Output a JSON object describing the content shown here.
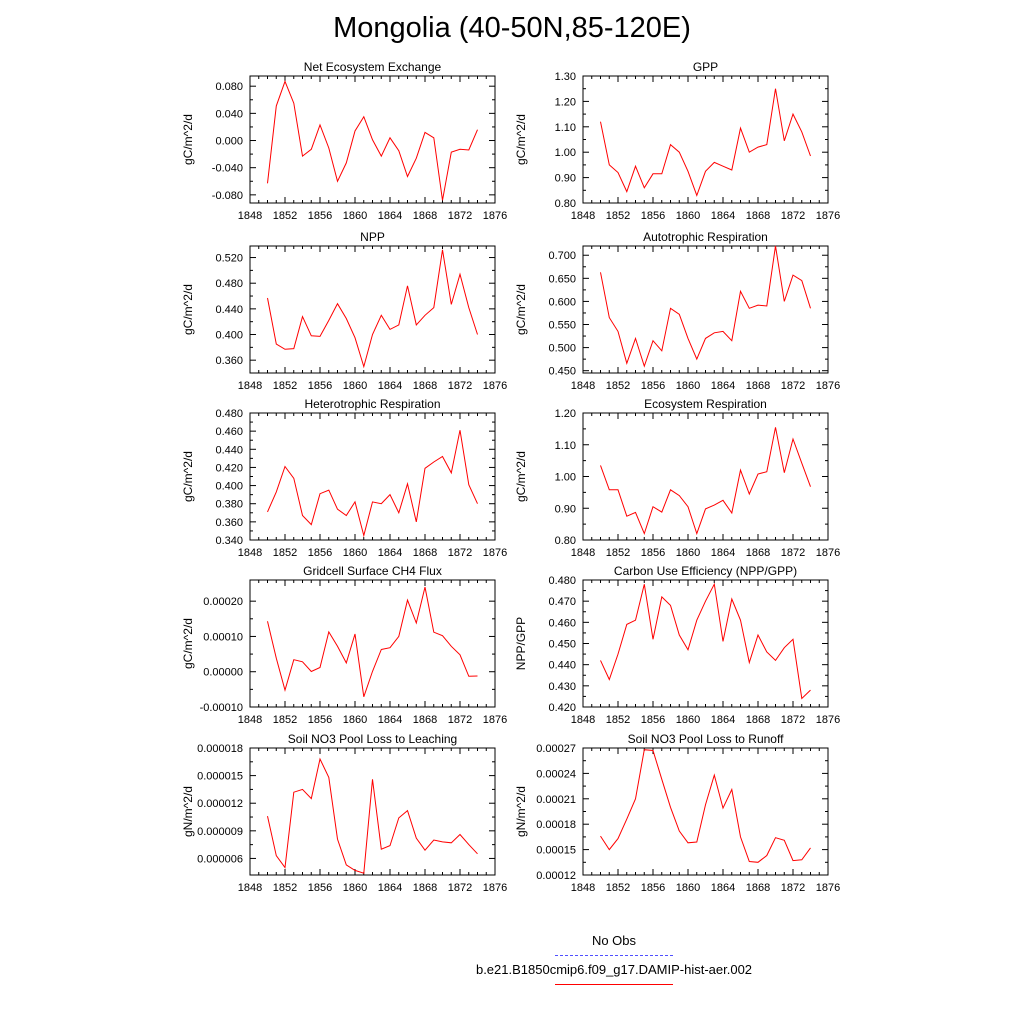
{
  "title": "Mongolia (40-50N,85-120E)",
  "legend": {
    "entries": [
      {
        "label": "No Obs",
        "color": "#5050ff",
        "dash": "dashed"
      },
      {
        "label": "b.e21.B1850cmip6.f09_g17.DAMIP-hist-aer.002",
        "color": "#ff0000",
        "dash": "solid"
      }
    ]
  },
  "chart_data": [
    {
      "type": "line",
      "title": "Net Ecosystem Exchange",
      "ylabel": "gC/m^2/d",
      "xlim": [
        1848,
        1876
      ],
      "xticks": [
        1848,
        1852,
        1856,
        1860,
        1864,
        1868,
        1872,
        1876
      ],
      "ylim": [
        -0.092,
        0.095
      ],
      "yticks": [
        "0.080",
        "0.040",
        "0.000",
        "-0.040",
        "-0.080"
      ],
      "ytick_values": [
        0.08,
        0.04,
        0.0,
        -0.04,
        -0.08
      ],
      "color": "#ff0000",
      "x": [
        1850,
        1851,
        1852,
        1853,
        1854,
        1855,
        1856,
        1857,
        1858,
        1859,
        1860,
        1861,
        1862,
        1863,
        1864,
        1865,
        1866,
        1867,
        1868,
        1869,
        1870,
        1871,
        1872,
        1873,
        1874
      ],
      "y": [
        -0.063,
        0.051,
        0.087,
        0.055,
        -0.023,
        -0.013,
        0.023,
        -0.011,
        -0.06,
        -0.033,
        0.014,
        0.035,
        0.001,
        -0.023,
        0.004,
        -0.015,
        -0.053,
        -0.026,
        0.012,
        0.004,
        -0.088,
        -0.017,
        -0.013,
        -0.014,
        0.016
      ]
    },
    {
      "type": "line",
      "title": "GPP",
      "ylabel": "gC/m^2/d",
      "xlim": [
        1848,
        1876
      ],
      "xticks": [
        1848,
        1852,
        1856,
        1860,
        1864,
        1868,
        1872,
        1876
      ],
      "ylim": [
        0.8,
        1.3
      ],
      "yticks": [
        "1.30",
        "1.20",
        "1.10",
        "1.00",
        "0.90",
        "0.80"
      ],
      "ytick_values": [
        1.3,
        1.2,
        1.1,
        1.0,
        0.9,
        0.8
      ],
      "color": "#ff0000",
      "x": [
        1850,
        1851,
        1852,
        1853,
        1854,
        1855,
        1856,
        1857,
        1858,
        1859,
        1860,
        1861,
        1862,
        1863,
        1864,
        1865,
        1866,
        1867,
        1868,
        1869,
        1870,
        1871,
        1872,
        1873,
        1874
      ],
      "y": [
        1.12,
        0.95,
        0.92,
        0.845,
        0.945,
        0.86,
        0.915,
        0.915,
        1.03,
        1.0,
        0.925,
        0.83,
        0.925,
        0.96,
        0.945,
        0.93,
        1.095,
        1.0,
        1.02,
        1.03,
        1.25,
        1.045,
        1.15,
        1.08,
        0.985
      ]
    },
    {
      "type": "line",
      "title": "NPP",
      "ylabel": "gC/m^2/d",
      "xlim": [
        1848,
        1876
      ],
      "xticks": [
        1848,
        1852,
        1856,
        1860,
        1864,
        1868,
        1872,
        1876
      ],
      "ylim": [
        0.34,
        0.538
      ],
      "yticks": [
        "0.520",
        "0.480",
        "0.440",
        "0.400",
        "0.360"
      ],
      "ytick_values": [
        0.52,
        0.48,
        0.44,
        0.4,
        0.36
      ],
      "color": "#ff0000",
      "x": [
        1850,
        1851,
        1852,
        1853,
        1854,
        1855,
        1856,
        1857,
        1858,
        1859,
        1860,
        1861,
        1862,
        1863,
        1864,
        1865,
        1866,
        1867,
        1868,
        1869,
        1870,
        1871,
        1872,
        1873,
        1874
      ],
      "y": [
        0.457,
        0.385,
        0.377,
        0.378,
        0.428,
        0.398,
        0.397,
        0.422,
        0.448,
        0.425,
        0.395,
        0.35,
        0.4,
        0.43,
        0.408,
        0.415,
        0.476,
        0.415,
        0.43,
        0.442,
        0.532,
        0.447,
        0.494,
        0.442,
        0.4
      ]
    },
    {
      "type": "line",
      "title": "Autotrophic Respiration",
      "ylabel": "gC/m^2/d",
      "xlim": [
        1848,
        1876
      ],
      "xticks": [
        1848,
        1852,
        1856,
        1860,
        1864,
        1868,
        1872,
        1876
      ],
      "ylim": [
        0.445,
        0.72
      ],
      "yticks": [
        "0.700",
        "0.650",
        "0.600",
        "0.550",
        "0.500",
        "0.450"
      ],
      "ytick_values": [
        0.7,
        0.65,
        0.6,
        0.55,
        0.5,
        0.45
      ],
      "color": "#ff0000",
      "x": [
        1850,
        1851,
        1852,
        1853,
        1854,
        1855,
        1856,
        1857,
        1858,
        1859,
        1860,
        1861,
        1862,
        1863,
        1864,
        1865,
        1866,
        1867,
        1868,
        1869,
        1870,
        1871,
        1872,
        1873,
        1874
      ],
      "y": [
        0.663,
        0.565,
        0.535,
        0.466,
        0.52,
        0.46,
        0.515,
        0.493,
        0.585,
        0.572,
        0.52,
        0.475,
        0.52,
        0.532,
        0.535,
        0.515,
        0.622,
        0.585,
        0.592,
        0.59,
        0.72,
        0.6,
        0.657,
        0.645,
        0.585
      ]
    },
    {
      "type": "line",
      "title": "Heterotrophic Respiration",
      "ylabel": "gC/m^2/d",
      "xlim": [
        1848,
        1876
      ],
      "xticks": [
        1848,
        1852,
        1856,
        1860,
        1864,
        1868,
        1872,
        1876
      ],
      "ylim": [
        0.34,
        0.48
      ],
      "yticks": [
        "0.480",
        "0.460",
        "0.440",
        "0.420",
        "0.400",
        "0.380",
        "0.360",
        "0.340"
      ],
      "ytick_values": [
        0.48,
        0.46,
        0.44,
        0.42,
        0.4,
        0.38,
        0.36,
        0.34
      ],
      "color": "#ff0000",
      "x": [
        1850,
        1851,
        1852,
        1853,
        1854,
        1855,
        1856,
        1857,
        1858,
        1859,
        1860,
        1861,
        1862,
        1863,
        1864,
        1865,
        1866,
        1867,
        1868,
        1869,
        1870,
        1871,
        1872,
        1873,
        1874
      ],
      "y": [
        0.371,
        0.393,
        0.421,
        0.408,
        0.367,
        0.357,
        0.391,
        0.395,
        0.374,
        0.367,
        0.382,
        0.345,
        0.382,
        0.38,
        0.39,
        0.37,
        0.402,
        0.36,
        0.419,
        0.426,
        0.432,
        0.414,
        0.461,
        0.401,
        0.38
      ]
    },
    {
      "type": "line",
      "title": "Ecosystem Respiration",
      "ylabel": "gC/m^2/d",
      "xlim": [
        1848,
        1876
      ],
      "xticks": [
        1848,
        1852,
        1856,
        1860,
        1864,
        1868,
        1872,
        1876
      ],
      "ylim": [
        0.8,
        1.2
      ],
      "yticks": [
        "1.20",
        "1.10",
        "1.00",
        "0.90",
        "0.80"
      ],
      "ytick_values": [
        1.2,
        1.1,
        1.0,
        0.9,
        0.8
      ],
      "color": "#ff0000",
      "x": [
        1850,
        1851,
        1852,
        1853,
        1854,
        1855,
        1856,
        1857,
        1858,
        1859,
        1860,
        1861,
        1862,
        1863,
        1864,
        1865,
        1866,
        1867,
        1868,
        1869,
        1870,
        1871,
        1872,
        1873,
        1874
      ],
      "y": [
        1.035,
        0.958,
        0.958,
        0.875,
        0.887,
        0.82,
        0.905,
        0.888,
        0.958,
        0.94,
        0.905,
        0.82,
        0.898,
        0.91,
        0.925,
        0.885,
        1.02,
        0.945,
        1.008,
        1.015,
        1.155,
        1.012,
        1.118,
        1.042,
        0.968
      ]
    },
    {
      "type": "line",
      "title": "Gridcell Surface CH4 Flux",
      "ylabel": "gC/m^2/d",
      "xlim": [
        1848,
        1876
      ],
      "xticks": [
        1848,
        1852,
        1856,
        1860,
        1864,
        1868,
        1872,
        1876
      ],
      "ylim": [
        -0.0001,
        0.00026
      ],
      "yticks": [
        "0.00020",
        "0.00010",
        "0.00000",
        "-0.00010"
      ],
      "ytick_values": [
        0.0002,
        0.0001,
        0.0,
        -0.0001
      ],
      "color": "#ff0000",
      "x": [
        1850,
        1851,
        1852,
        1853,
        1854,
        1855,
        1856,
        1857,
        1858,
        1859,
        1860,
        1861,
        1862,
        1863,
        1864,
        1865,
        1866,
        1867,
        1868,
        1869,
        1870,
        1871,
        1872,
        1873,
        1874
      ],
      "y": [
        0.000143,
        3.8e-05,
        -5.2e-05,
        3.4e-05,
        2.8e-05,
        5e-07,
        1.2e-05,
        0.000113,
        7.2e-05,
        2.5e-05,
        0.000107,
        -7.1e-05,
        1e-06,
        6.3e-05,
        6.8e-05,
        0.0001,
        0.000203,
        0.000138,
        0.00024,
        0.000112,
        0.000102,
        7.2e-05,
        4.8e-05,
        -1.3e-05,
        -1.2e-05
      ]
    },
    {
      "type": "line",
      "title": "Carbon Use Efficiency (NPP/GPP)",
      "ylabel": "NPP/GPP",
      "xlim": [
        1848,
        1876
      ],
      "xticks": [
        1848,
        1852,
        1856,
        1860,
        1864,
        1868,
        1872,
        1876
      ],
      "ylim": [
        0.42,
        0.48
      ],
      "yticks": [
        "0.480",
        "0.470",
        "0.460",
        "0.450",
        "0.440",
        "0.430",
        "0.420"
      ],
      "ytick_values": [
        0.48,
        0.47,
        0.46,
        0.45,
        0.44,
        0.43,
        0.42
      ],
      "color": "#ff0000",
      "x": [
        1850,
        1851,
        1852,
        1853,
        1854,
        1855,
        1856,
        1857,
        1858,
        1859,
        1860,
        1861,
        1862,
        1863,
        1864,
        1865,
        1866,
        1867,
        1868,
        1869,
        1870,
        1871,
        1872,
        1873,
        1874
      ],
      "y": [
        0.442,
        0.433,
        0.445,
        0.459,
        0.461,
        0.478,
        0.452,
        0.472,
        0.468,
        0.454,
        0.447,
        0.461,
        0.47,
        0.478,
        0.451,
        0.471,
        0.461,
        0.441,
        0.454,
        0.446,
        0.442,
        0.448,
        0.452,
        0.424,
        0.428
      ]
    },
    {
      "type": "line",
      "title": "Soil NO3 Pool Loss to Leaching",
      "ylabel": "gN/m^2/d",
      "xlim": [
        1848,
        1876
      ],
      "xticks": [
        1848,
        1852,
        1856,
        1860,
        1864,
        1868,
        1872,
        1876
      ],
      "ylim": [
        4.2e-06,
        1.8e-05
      ],
      "yticks": [
        "0.000018",
        "0.000015",
        "0.000012",
        "0.000009",
        "0.000006"
      ],
      "ytick_values": [
        1.8e-05,
        1.5e-05,
        1.2e-05,
        9e-06,
        6e-06
      ],
      "color": "#ff0000",
      "x": [
        1850,
        1851,
        1852,
        1853,
        1854,
        1855,
        1856,
        1857,
        1858,
        1859,
        1860,
        1861,
        1862,
        1863,
        1864,
        1865,
        1866,
        1867,
        1868,
        1869,
        1870,
        1871,
        1872,
        1873,
        1874
      ],
      "y": [
        1.06e-05,
        6.3e-06,
        5e-06,
        1.32e-05,
        1.35e-05,
        1.25e-05,
        1.68e-05,
        1.48e-05,
        8.1e-06,
        5.3e-06,
        4.7e-06,
        4.4e-06,
        1.46e-05,
        7e-06,
        7.4e-06,
        1.04e-05,
        1.12e-05,
        8.2e-06,
        6.9e-06,
        8e-06,
        7.8e-06,
        7.7e-06,
        8.6e-06,
        7.5e-06,
        6.5e-06
      ]
    },
    {
      "type": "line",
      "title": "Soil NO3 Pool Loss to Runoff",
      "ylabel": "gN/m^2/d",
      "xlim": [
        1848,
        1876
      ],
      "xticks": [
        1848,
        1852,
        1856,
        1860,
        1864,
        1868,
        1872,
        1876
      ],
      "ylim": [
        0.00012,
        0.00027
      ],
      "yticks": [
        "0.00027",
        "0.00024",
        "0.00021",
        "0.00018",
        "0.00015",
        "0.00012"
      ],
      "ytick_values": [
        0.00027,
        0.00024,
        0.00021,
        0.00018,
        0.00015,
        0.00012
      ],
      "color": "#ff0000",
      "x": [
        1850,
        1851,
        1852,
        1853,
        1854,
        1855,
        1856,
        1857,
        1858,
        1859,
        1860,
        1861,
        1862,
        1863,
        1864,
        1865,
        1866,
        1867,
        1868,
        1869,
        1870,
        1871,
        1872,
        1873,
        1874
      ],
      "y": [
        0.000166,
        0.00015,
        0.000163,
        0.000186,
        0.00021,
        0.000268,
        0.000267,
        0.000233,
        0.0002,
        0.000172,
        0.000158,
        0.000159,
        0.000203,
        0.000238,
        0.000199,
        0.000221,
        0.000165,
        0.000136,
        0.000135,
        0.000143,
        0.000164,
        0.000161,
        0.000137,
        0.000138,
        0.000152
      ]
    }
  ]
}
